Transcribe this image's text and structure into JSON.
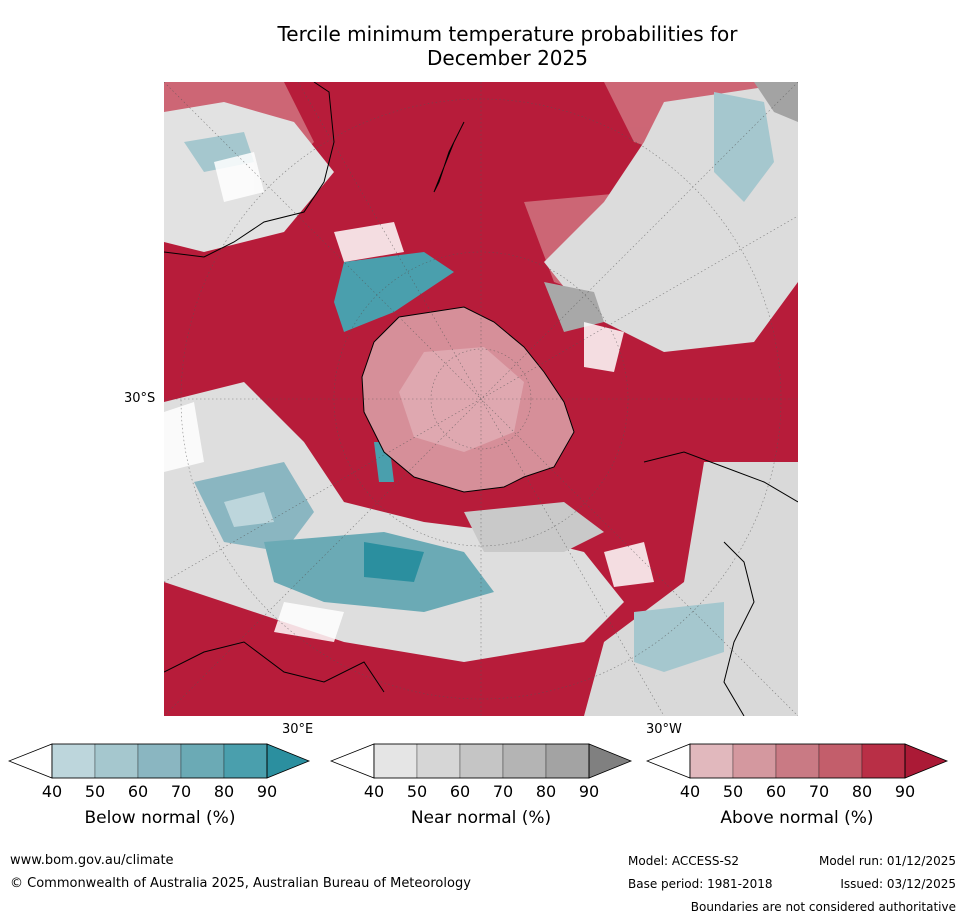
{
  "chart_data": {
    "type": "heatmap",
    "title_line1": "Tercile minimum temperature probabilities for",
    "title_line2": "December 2025",
    "projection": "South polar stereographic",
    "lat_labels": [
      "30°S"
    ],
    "lon_labels": [
      "30°E",
      "30°W"
    ],
    "colorbars": [
      {
        "name": "Below normal (%)",
        "ticks": [
          "40",
          "50",
          "60",
          "70",
          "80",
          "90"
        ],
        "colors": [
          "#bdd6dc",
          "#a5c7ce",
          "#8ab6c1",
          "#6baab5",
          "#4a9fad",
          "#2b8f9f"
        ]
      },
      {
        "name": "Near normal (%)",
        "ticks": [
          "40",
          "50",
          "60",
          "70",
          "80",
          "90"
        ],
        "colors": [
          "#e5e5e5",
          "#d6d6d6",
          "#c5c5c5",
          "#b4b4b4",
          "#a3a3a3",
          "#808080"
        ]
      },
      {
        "name": "Above normal (%)",
        "ticks": [
          "40",
          "50",
          "60",
          "70",
          "80",
          "90"
        ],
        "colors": [
          "#e1b8bd",
          "#d4989f",
          "#c97a84",
          "#c35e6b",
          "#b92f46",
          "#ab1a36"
        ]
      }
    ]
  },
  "footer": {
    "website": "www.bom.gov.au/climate",
    "copyright": "© Commonwealth of Australia 2025, Australian Bureau of Meteorology",
    "model": "Model: ACCESS-S2",
    "base_period": "Base period: 1981-2018",
    "model_run": "Model run: 01/12/2025",
    "issued": "Issued: 03/12/2025",
    "disclaimer": "Boundaries are not considered authoritative"
  },
  "colors": {
    "ocean_above": "#b71c3a",
    "antarctica": "#d68f99",
    "coastline": "#000000"
  }
}
